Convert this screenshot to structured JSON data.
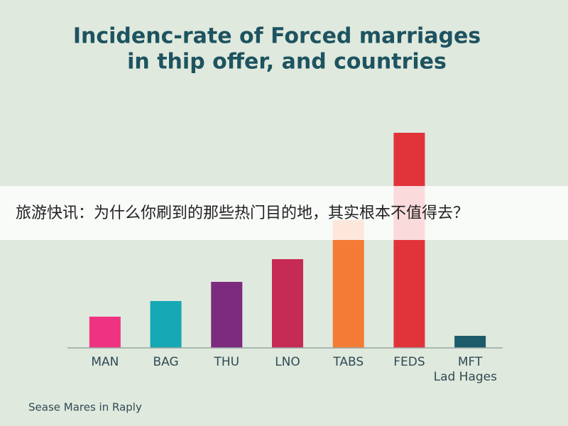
{
  "chart_data": {
    "type": "bar",
    "title": [
      "Incidenc-rate of Forced marriages",
      "in thip offer, and countries"
    ],
    "categories": [
      "MAN",
      "BAG",
      "THU",
      "LNO",
      "TABS",
      "FEDS",
      "MFT"
    ],
    "values": [
      44,
      66,
      93,
      125,
      180,
      303,
      17
    ],
    "colors": [
      "#ef3380",
      "#17a8b6",
      "#7c2b7f",
      "#c52b55",
      "#f47b35",
      "#e0343a",
      "#1c5b69"
    ],
    "ylim": [
      0,
      330
    ],
    "x_label": "Lad Hages",
    "source": "Sease Mares in Raply"
  },
  "overlay_banner": {
    "text": "旅游快讯：为什么你刷到的那些热门目的地，其实根本不值得去？"
  }
}
